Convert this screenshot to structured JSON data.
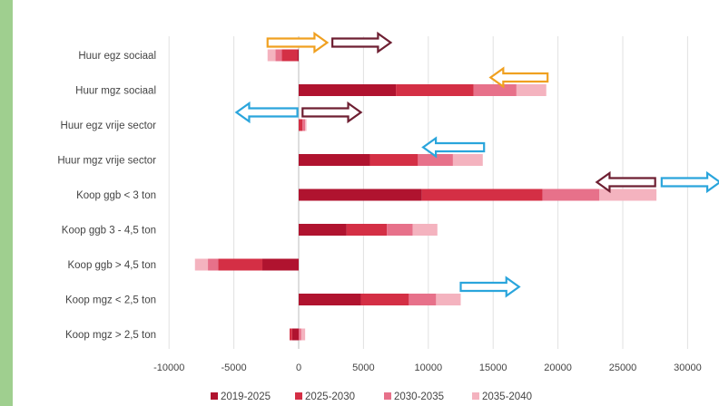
{
  "chart_data": {
    "type": "bar",
    "orientation": "horizontal",
    "stacked": true,
    "title": "",
    "xlabel": "",
    "ylabel": "",
    "xlim": [
      -10000,
      32000
    ],
    "xticks": [
      -10000,
      -5000,
      0,
      5000,
      10000,
      15000,
      20000,
      25000,
      30000
    ],
    "grid": "vertical",
    "legend_position": "bottom",
    "categories": [
      "Huur egz sociaal",
      "Huur mgz sociaal",
      "Huur egz vrije sector",
      "Huur mgz vrije sector",
      "Koop ggb < 3 ton",
      "Koop ggb 3 - 4,5 ton",
      "Koop ggb > 4,5 ton",
      "Koop mgz < 2,5 ton",
      "Koop mgz > 2,5 ton"
    ],
    "series": [
      {
        "name": "2019-2025",
        "color": "#b0132f",
        "values": [
          -100,
          7500,
          0,
          5500,
          9500,
          3700,
          -2800,
          4800,
          -500
        ]
      },
      {
        "name": "2025-2030",
        "color": "#d42f45",
        "values": [
          -1200,
          6000,
          300,
          3700,
          9300,
          3100,
          -3400,
          3700,
          -200
        ]
      },
      {
        "name": "2030-2035",
        "color": "#e7718a",
        "values": [
          -500,
          3300,
          200,
          2700,
          4400,
          2000,
          -800,
          2100,
          200
        ]
      },
      {
        "name": "2035-2040",
        "color": "#f4b3bf",
        "values": [
          -600,
          2300,
          100,
          2300,
          4400,
          1900,
          -1000,
          1900,
          300
        ]
      }
    ],
    "arrows": [
      {
        "row": 0,
        "from": -2400,
        "to": 2200,
        "color": "orange"
      },
      {
        "row": 0,
        "from": 2600,
        "to": 7100,
        "color": "maroon"
      },
      {
        "row": 1,
        "from": 19200,
        "to": 14800,
        "color": "orange"
      },
      {
        "row": 2,
        "from": -100,
        "to": -4800,
        "color": "blue"
      },
      {
        "row": 2,
        "from": 300,
        "to": 4800,
        "color": "maroon"
      },
      {
        "row": 3,
        "from": 14300,
        "to": 9600,
        "color": "blue"
      },
      {
        "row": 4,
        "from": 27500,
        "to": 23000,
        "color": "maroon"
      },
      {
        "row": 4,
        "from": 28000,
        "to": 32500,
        "color": "blue"
      },
      {
        "row": 7,
        "from": 12500,
        "to": 17000,
        "color": "blue"
      }
    ],
    "arrow_colors": {
      "orange": "#f0a020",
      "maroon": "#6e1f32",
      "blue": "#2aa5dc"
    }
  }
}
